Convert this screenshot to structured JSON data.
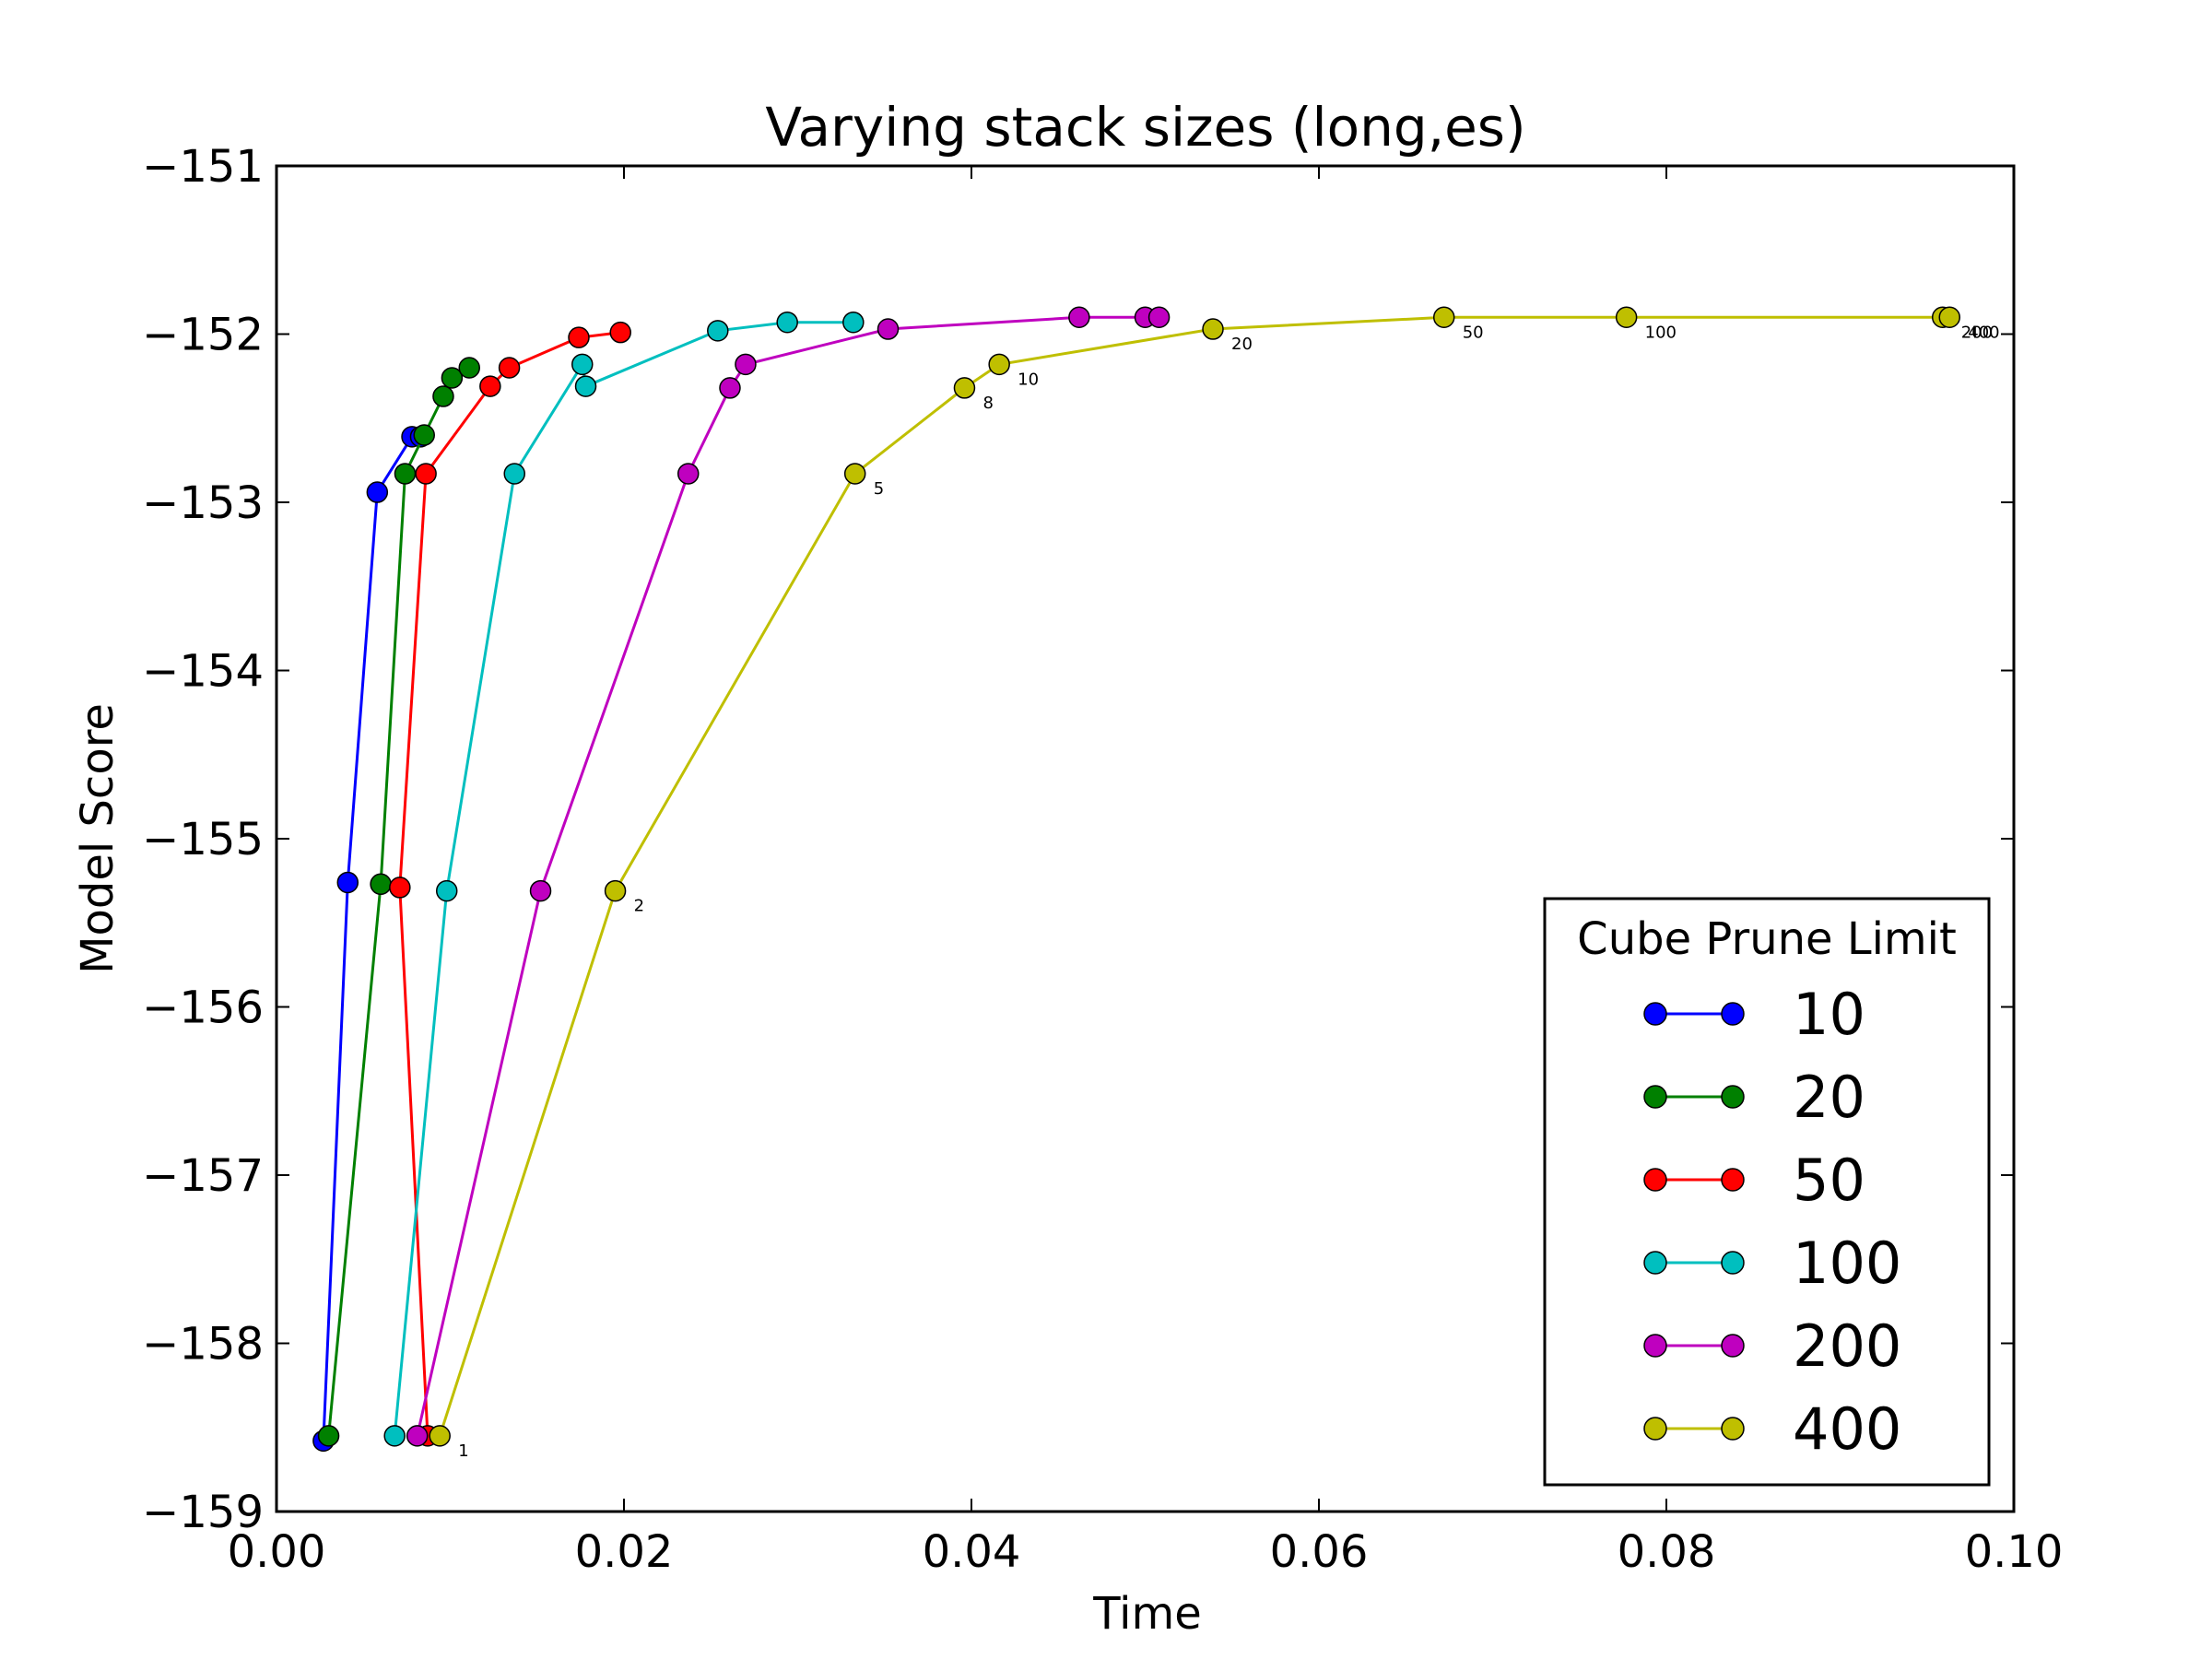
{
  "chart_data": {
    "type": "line",
    "title": "Varying stack sizes (long,es)",
    "xlabel": "Time",
    "ylabel": "Model Score",
    "xlim": [
      0.0,
      0.1
    ],
    "ylim": [
      -159,
      -151
    ],
    "x_ticks": [
      0.0,
      0.02,
      0.04,
      0.06,
      0.08,
      0.1
    ],
    "x_tick_labels": [
      "0.00",
      "0.02",
      "0.04",
      "0.06",
      "0.08",
      "0.10"
    ],
    "y_ticks": [
      -159,
      -158,
      -157,
      -156,
      -155,
      -154,
      -153,
      -152,
      -151
    ],
    "y_tick_labels": [
      "−159",
      "−158",
      "−157",
      "−156",
      "−155",
      "−154",
      "−153",
      "−152",
      "−151"
    ],
    "grid": false,
    "legend": {
      "title": "Cube Prune Limit",
      "placement": "lower-right"
    },
    "series": [
      {
        "name": "10",
        "color": "#0000ff",
        "x": [
          0.0027,
          0.0041,
          0.0058,
          0.0078,
          0.0083
        ],
        "y": [
          -158.58,
          -155.26,
          -152.94,
          -152.61,
          -152.61
        ]
      },
      {
        "name": "20",
        "color": "#008000",
        "x": [
          0.003,
          0.006,
          0.0074,
          0.0085,
          0.0096,
          0.0101,
          0.0111
        ],
        "y": [
          -158.55,
          -155.27,
          -152.83,
          -152.6,
          -152.37,
          -152.26,
          -152.2
        ]
      },
      {
        "name": "50",
        "color": "#ff0000",
        "x": [
          0.0087,
          0.0071,
          0.0086,
          0.0123,
          0.0134,
          0.0174,
          0.0198
        ],
        "y": [
          -158.55,
          -155.29,
          -152.83,
          -152.31,
          -152.2,
          -152.02,
          -151.99
        ]
      },
      {
        "name": "100",
        "color": "#00bfbf",
        "x": [
          0.0068,
          0.0098,
          0.0137,
          0.0176,
          0.0178,
          0.0254,
          0.0294,
          0.0332
        ],
        "y": [
          -158.55,
          -155.31,
          -152.83,
          -152.18,
          -152.31,
          -151.98,
          -151.93,
          -151.93
        ]
      },
      {
        "name": "200",
        "color": "#bf00bf",
        "x": [
          0.0081,
          0.0152,
          0.0237,
          0.0261,
          0.027,
          0.0352,
          0.0462,
          0.05,
          0.0508
        ],
        "y": [
          -158.55,
          -155.31,
          -152.83,
          -152.32,
          -152.18,
          -151.97,
          -151.9,
          -151.9,
          -151.9
        ]
      },
      {
        "name": "400",
        "color": "#bfbf00",
        "x": [
          0.0094,
          0.0195,
          0.0333,
          0.0396,
          0.0416,
          0.0539,
          0.0672,
          0.0777,
          0.0959,
          0.0963
        ],
        "y": [
          -158.55,
          -155.31,
          -152.83,
          -152.32,
          -152.18,
          -151.97,
          -151.9,
          -151.9,
          -151.9,
          -151.9
        ],
        "point_labels": [
          "1",
          "2",
          "5",
          "8",
          "10",
          "20",
          "50",
          "100",
          "200",
          "400"
        ]
      }
    ]
  }
}
